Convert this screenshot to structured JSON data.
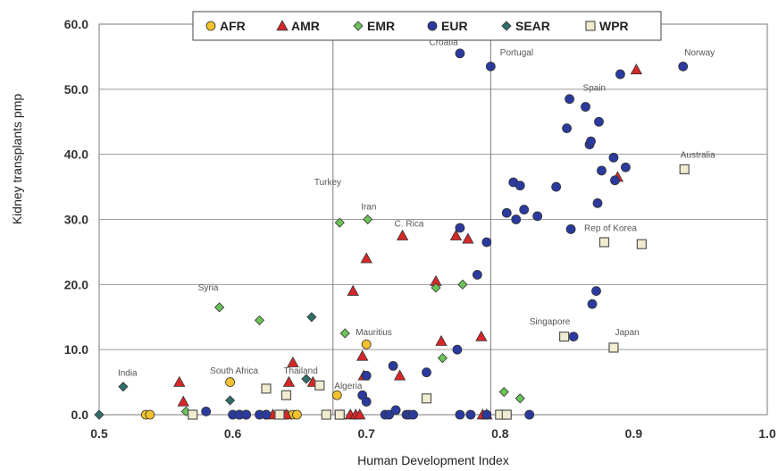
{
  "chart_data": {
    "type": "scatter",
    "xlabel": "Human Development Index",
    "ylabel": "Kidney transplants pmp",
    "xlim": [
      0.5,
      1.0
    ],
    "ylim": [
      0,
      60
    ],
    "x_ticks": [
      "0.5",
      "0.6",
      "0.7",
      "0.8",
      "0.9",
      "1.0"
    ],
    "y_ticks": [
      "0.0",
      "10.0",
      "20.0",
      "30.0",
      "40.0",
      "50.0",
      "60.0"
    ],
    "grid": "horizontal",
    "reference_lines_x": [
      0.675,
      0.793
    ],
    "legend_position": "top",
    "series": [
      {
        "name": "AFR",
        "marker": "circle",
        "color": "#f2c12e",
        "points": [
          [
            0.535,
            0
          ],
          [
            0.538,
            0
          ],
          [
            0.598,
            5
          ],
          [
            0.605,
            0
          ],
          [
            0.61,
            0
          ],
          [
            0.625,
            0
          ],
          [
            0.64,
            0
          ],
          [
            0.645,
            0
          ],
          [
            0.648,
            0
          ],
          [
            0.678,
            3
          ],
          [
            0.7,
            10.8
          ]
        ]
      },
      {
        "name": "AMR",
        "marker": "triangle",
        "color": "#d62728",
        "points": [
          [
            0.56,
            5
          ],
          [
            0.563,
            2
          ],
          [
            0.63,
            0
          ],
          [
            0.64,
            0
          ],
          [
            0.642,
            5
          ],
          [
            0.645,
            8
          ],
          [
            0.66,
            5
          ],
          [
            0.688,
            0
          ],
          [
            0.69,
            19
          ],
          [
            0.692,
            0
          ],
          [
            0.695,
            0
          ],
          [
            0.697,
            9
          ],
          [
            0.698,
            6
          ],
          [
            0.7,
            24
          ],
          [
            0.725,
            6
          ],
          [
            0.727,
            27.5
          ],
          [
            0.752,
            20.5
          ],
          [
            0.756,
            11.3
          ],
          [
            0.767,
            27.5
          ],
          [
            0.776,
            27
          ],
          [
            0.786,
            12
          ],
          [
            0.787,
            0
          ],
          [
            0.79,
            0
          ],
          [
            0.888,
            36.5
          ],
          [
            0.902,
            53
          ]
        ]
      },
      {
        "name": "EMR",
        "marker": "diamond",
        "color": "#6ac259",
        "points": [
          [
            0.565,
            0.5
          ],
          [
            0.59,
            16.5
          ],
          [
            0.62,
            14.5
          ],
          [
            0.68,
            29.5
          ],
          [
            0.684,
            12.5
          ],
          [
            0.701,
            30
          ],
          [
            0.752,
            19.5
          ],
          [
            0.757,
            8.7
          ],
          [
            0.772,
            20
          ],
          [
            0.803,
            3.5
          ],
          [
            0.815,
            2.5
          ]
        ]
      },
      {
        "name": "EUR",
        "marker": "circle",
        "color": "#2b3a9e",
        "points": [
          [
            0.58,
            0.5
          ],
          [
            0.6,
            0
          ],
          [
            0.605,
            0
          ],
          [
            0.61,
            0
          ],
          [
            0.62,
            0
          ],
          [
            0.625,
            0
          ],
          [
            0.697,
            3
          ],
          [
            0.7,
            2
          ],
          [
            0.7,
            6
          ],
          [
            0.714,
            0
          ],
          [
            0.717,
            0
          ],
          [
            0.72,
            7.5
          ],
          [
            0.722,
            0.7
          ],
          [
            0.73,
            0
          ],
          [
            0.732,
            0
          ],
          [
            0.735,
            0
          ],
          [
            0.745,
            6.5
          ],
          [
            0.768,
            10
          ],
          [
            0.77,
            28.7
          ],
          [
            0.77,
            0
          ],
          [
            0.77,
            55.5
          ],
          [
            0.778,
            0
          ],
          [
            0.783,
            21.5
          ],
          [
            0.79,
            0
          ],
          [
            0.79,
            26.5
          ],
          [
            0.793,
            53.5
          ],
          [
            0.805,
            31
          ],
          [
            0.81,
            35.7
          ],
          [
            0.812,
            30
          ],
          [
            0.815,
            35.2
          ],
          [
            0.818,
            31.5
          ],
          [
            0.822,
            0
          ],
          [
            0.828,
            30.5
          ],
          [
            0.842,
            35
          ],
          [
            0.85,
            44
          ],
          [
            0.852,
            48.5
          ],
          [
            0.853,
            28.5
          ],
          [
            0.855,
            12
          ],
          [
            0.864,
            47.3
          ],
          [
            0.867,
            41.5
          ],
          [
            0.868,
            42
          ],
          [
            0.869,
            17
          ],
          [
            0.872,
            19
          ],
          [
            0.873,
            32.5
          ],
          [
            0.874,
            45
          ],
          [
            0.876,
            37.5
          ],
          [
            0.885,
            39.5
          ],
          [
            0.886,
            36
          ],
          [
            0.89,
            52.3
          ],
          [
            0.894,
            38
          ],
          [
            0.937,
            53.5
          ]
        ]
      },
      {
        "name": "SEAR",
        "marker": "diamond",
        "color": "#2f6f6a",
        "points": [
          [
            0.5,
            0
          ],
          [
            0.518,
            4.3
          ],
          [
            0.598,
            2.2
          ],
          [
            0.655,
            5.5
          ],
          [
            0.659,
            15
          ]
        ]
      },
      {
        "name": "WPR",
        "marker": "square",
        "color": "#f1eccf",
        "points": [
          [
            0.57,
            0
          ],
          [
            0.625,
            4
          ],
          [
            0.635,
            0
          ],
          [
            0.64,
            3
          ],
          [
            0.665,
            4.5
          ],
          [
            0.68,
            0
          ],
          [
            0.67,
            0
          ],
          [
            0.68,
            0
          ],
          [
            0.745,
            2.5
          ],
          [
            0.8,
            0
          ],
          [
            0.805,
            0
          ],
          [
            0.848,
            12
          ],
          [
            0.878,
            26.5
          ],
          [
            0.885,
            10.3
          ],
          [
            0.906,
            26.2
          ],
          [
            0.938,
            37.7
          ]
        ]
      }
    ],
    "annotations": [
      {
        "text": "Croatia",
        "x": 0.747,
        "y": 56.8
      },
      {
        "text": "Portugal",
        "x": 0.8,
        "y": 55.2
      },
      {
        "text": "Norway",
        "x": 0.938,
        "y": 55.2
      },
      {
        "text": "Spain",
        "x": 0.862,
        "y": 49.8
      },
      {
        "text": "Australia",
        "x": 0.935,
        "y": 39.5
      },
      {
        "text": "Turkey",
        "x": 0.661,
        "y": 35.3
      },
      {
        "text": "Iran",
        "x": 0.696,
        "y": 31.5
      },
      {
        "text": "C. Rica",
        "x": 0.721,
        "y": 28.9
      },
      {
        "text": "Rep of Korea",
        "x": 0.863,
        "y": 28.2
      },
      {
        "text": "Syria",
        "x": 0.574,
        "y": 19.1
      },
      {
        "text": "Singapore",
        "x": 0.822,
        "y": 13.9
      },
      {
        "text": "Mauritius",
        "x": 0.692,
        "y": 12.2
      },
      {
        "text": "Japan",
        "x": 0.886,
        "y": 12.2
      },
      {
        "text": "India",
        "x": 0.514,
        "y": 6.0
      },
      {
        "text": "South Africa",
        "x": 0.583,
        "y": 6.3
      },
      {
        "text": "Thailand",
        "x": 0.638,
        "y": 6.3
      },
      {
        "text": "Algeria",
        "x": 0.676,
        "y": 4.0
      }
    ]
  }
}
